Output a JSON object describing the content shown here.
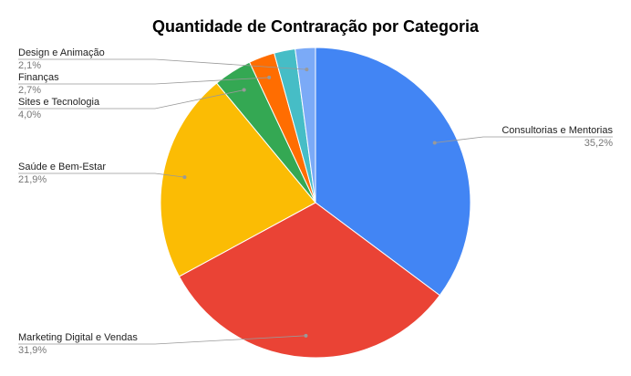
{
  "chart_data": {
    "type": "pie",
    "title": "Quantidade de Contraração por Categoria",
    "categories": [
      "Consultorias e Mentorias",
      "Marketing Digital e Vendas",
      "Saúde e Bem-Estar",
      "Sites e Tecnologia",
      "Finanças",
      null,
      "Design e Animação"
    ],
    "values": [
      35.2,
      31.9,
      21.9,
      4.0,
      2.7,
      2.2,
      2.1
    ],
    "value_labels": [
      "35,2%",
      "31,9%",
      "21,9%",
      "4,0%",
      "2,7%",
      null,
      "2,1%"
    ],
    "colors": [
      "#4285f4",
      "#ea4335",
      "#fbbc04",
      "#34a853",
      "#ff6d01",
      "#46bdc6",
      "#7baaf7"
    ]
  }
}
